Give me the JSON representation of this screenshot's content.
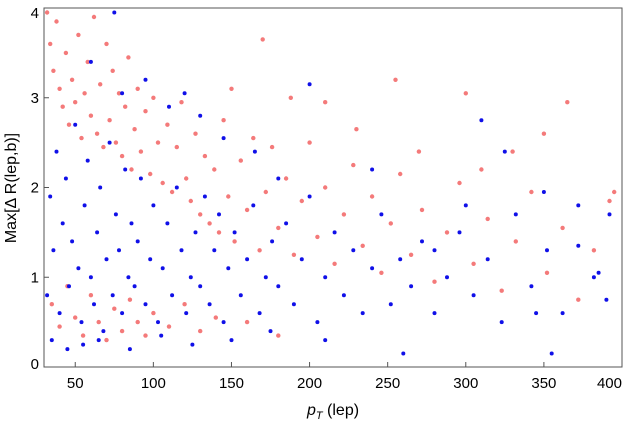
{
  "chart_data": {
    "type": "scatter",
    "title": "",
    "xlabel_main": "p",
    "xlabel_sub": "T",
    "xlabel_rest": " (lep)",
    "ylabel": "Max[Δ R(lep,b)]",
    "xlim": [
      30,
      400
    ],
    "ylim": [
      0,
      4
    ],
    "xticks": [
      50,
      100,
      150,
      200,
      250,
      300,
      350,
      400
    ],
    "yticks": [
      0,
      1,
      2,
      3,
      4
    ],
    "grid": false,
    "legend": "none",
    "series": [
      {
        "color": "#f47a7a",
        "points": [
          [
            32,
            3.95
          ],
          [
            34,
            3.6
          ],
          [
            36,
            3.3
          ],
          [
            38,
            3.85
          ],
          [
            40,
            3.1
          ],
          [
            42,
            2.9
          ],
          [
            44,
            3.5
          ],
          [
            46,
            2.7
          ],
          [
            48,
            3.2
          ],
          [
            50,
            2.95
          ],
          [
            52,
            3.7
          ],
          [
            54,
            2.55
          ],
          [
            56,
            3.05
          ],
          [
            58,
            3.4
          ],
          [
            60,
            2.8
          ],
          [
            62,
            3.9
          ],
          [
            64,
            2.6
          ],
          [
            66,
            3.15
          ],
          [
            68,
            2.45
          ],
          [
            70,
            3.6
          ],
          [
            72,
            2.75
          ],
          [
            74,
            3.3
          ],
          [
            76,
            2.5
          ],
          [
            78,
            3.05
          ],
          [
            80,
            2.35
          ],
          [
            82,
            2.9
          ],
          [
            84,
            3.45
          ],
          [
            86,
            2.2
          ],
          [
            88,
            2.65
          ],
          [
            90,
            3.1
          ],
          [
            92,
            2.4
          ],
          [
            95,
            2.85
          ],
          [
            98,
            2.15
          ],
          [
            100,
            3.0
          ],
          [
            103,
            2.5
          ],
          [
            106,
            2.05
          ],
          [
            109,
            2.7
          ],
          [
            112,
            1.95
          ],
          [
            115,
            2.45
          ],
          [
            118,
            2.95
          ],
          [
            121,
            2.1
          ],
          [
            124,
            1.85
          ],
          [
            127,
            2.6
          ],
          [
            130,
            1.7
          ],
          [
            133,
            2.35
          ],
          [
            136,
            1.6
          ],
          [
            139,
            2.2
          ],
          [
            142,
            1.5
          ],
          [
            145,
            2.75
          ],
          [
            148,
            1.9
          ],
          [
            152,
            1.4
          ],
          [
            156,
            2.3
          ],
          [
            160,
            1.75
          ],
          [
            164,
            2.55
          ],
          [
            168,
            1.3
          ],
          [
            172,
            1.95
          ],
          [
            176,
            2.45
          ],
          [
            180,
            1.55
          ],
          [
            185,
            2.1
          ],
          [
            190,
            1.25
          ],
          [
            195,
            1.85
          ],
          [
            200,
            2.5
          ],
          [
            205,
            1.45
          ],
          [
            210,
            2.0
          ],
          [
            216,
            1.15
          ],
          [
            222,
            1.7
          ],
          [
            228,
            2.25
          ],
          [
            234,
            1.35
          ],
          [
            240,
            1.9
          ],
          [
            246,
            1.05
          ],
          [
            252,
            1.6
          ],
          [
            258,
            2.15
          ],
          [
            265,
            1.25
          ],
          [
            272,
            1.75
          ],
          [
            280,
            0.95
          ],
          [
            288,
            1.5
          ],
          [
            296,
            2.05
          ],
          [
            305,
            1.15
          ],
          [
            314,
            1.65
          ],
          [
            323,
            0.85
          ],
          [
            332,
            1.4
          ],
          [
            342,
            1.95
          ],
          [
            352,
            1.05
          ],
          [
            362,
            1.55
          ],
          [
            372,
            0.75
          ],
          [
            382,
            1.3
          ],
          [
            392,
            1.85
          ],
          [
            150,
            3.1
          ],
          [
            170,
            3.65
          ],
          [
            210,
            2.95
          ],
          [
            255,
            3.2
          ],
          [
            300,
            3.05
          ],
          [
            330,
            2.4
          ],
          [
            365,
            2.95
          ],
          [
            395,
            1.95
          ],
          [
            188,
            3.0
          ],
          [
            230,
            2.65
          ],
          [
            270,
            2.4
          ],
          [
            310,
            2.2
          ],
          [
            350,
            2.6
          ],
          [
            35,
            0.7
          ],
          [
            40,
            0.45
          ],
          [
            45,
            0.9
          ],
          [
            50,
            0.55
          ],
          [
            55,
            0.35
          ],
          [
            60,
            0.8
          ],
          [
            65,
            0.5
          ],
          [
            70,
            0.3
          ],
          [
            75,
            0.65
          ],
          [
            80,
            0.4
          ],
          [
            85,
            0.75
          ],
          [
            90,
            0.5
          ],
          [
            95,
            0.35
          ],
          [
            100,
            0.6
          ],
          [
            110,
            0.45
          ],
          [
            120,
            0.7
          ],
          [
            130,
            0.4
          ],
          [
            140,
            0.55
          ],
          [
            160,
            0.5
          ],
          [
            180,
            0.35
          ]
        ]
      },
      {
        "color": "#1010e8",
        "points": [
          [
            32,
            0.8
          ],
          [
            34,
            1.9
          ],
          [
            36,
            1.3
          ],
          [
            38,
            2.4
          ],
          [
            40,
            0.6
          ],
          [
            42,
            1.6
          ],
          [
            44,
            2.1
          ],
          [
            46,
            0.9
          ],
          [
            48,
            1.4
          ],
          [
            50,
            2.7
          ],
          [
            52,
            1.1
          ],
          [
            54,
            0.5
          ],
          [
            56,
            1.8
          ],
          [
            58,
            2.3
          ],
          [
            60,
            1.0
          ],
          [
            62,
            0.7
          ],
          [
            64,
            1.5
          ],
          [
            66,
            2.0
          ],
          [
            68,
            0.4
          ],
          [
            70,
            1.2
          ],
          [
            72,
            2.5
          ],
          [
            74,
            0.8
          ],
          [
            76,
            1.7
          ],
          [
            78,
            1.3
          ],
          [
            80,
            0.6
          ],
          [
            82,
            2.2
          ],
          [
            84,
            1.0
          ],
          [
            86,
            1.6
          ],
          [
            88,
            0.9
          ],
          [
            90,
            1.4
          ],
          [
            92,
            2.1
          ],
          [
            95,
            0.7
          ],
          [
            98,
            1.2
          ],
          [
            100,
            1.8
          ],
          [
            103,
            0.5
          ],
          [
            106,
            1.1
          ],
          [
            109,
            1.6
          ],
          [
            112,
            0.8
          ],
          [
            115,
            2.0
          ],
          [
            118,
            1.3
          ],
          [
            121,
            0.6
          ],
          [
            124,
            1.0
          ],
          [
            127,
            1.5
          ],
          [
            130,
            0.9
          ],
          [
            133,
            1.9
          ],
          [
            136,
            0.7
          ],
          [
            139,
            1.3
          ],
          [
            142,
            1.7
          ],
          [
            145,
            0.5
          ],
          [
            148,
            1.1
          ],
          [
            152,
            1.5
          ],
          [
            156,
            0.8
          ],
          [
            160,
            1.2
          ],
          [
            164,
            1.8
          ],
          [
            168,
            0.6
          ],
          [
            172,
            1.0
          ],
          [
            176,
            1.4
          ],
          [
            180,
            0.9
          ],
          [
            185,
            1.6
          ],
          [
            190,
            0.7
          ],
          [
            195,
            1.2
          ],
          [
            200,
            1.9
          ],
          [
            205,
            0.5
          ],
          [
            210,
            1.0
          ],
          [
            216,
            1.5
          ],
          [
            222,
            0.8
          ],
          [
            228,
            1.3
          ],
          [
            234,
            0.6
          ],
          [
            240,
            1.1
          ],
          [
            246,
            1.7
          ],
          [
            252,
            0.7
          ],
          [
            258,
            1.2
          ],
          [
            265,
            0.9
          ],
          [
            272,
            1.4
          ],
          [
            280,
            0.6
          ],
          [
            288,
            1.0
          ],
          [
            296,
            1.5
          ],
          [
            305,
            0.8
          ],
          [
            314,
            1.2
          ],
          [
            323,
            0.5
          ],
          [
            332,
            1.7
          ],
          [
            342,
            0.9
          ],
          [
            352,
            1.3
          ],
          [
            362,
            0.6
          ],
          [
            372,
            1.8
          ],
          [
            382,
            1.0
          ],
          [
            392,
            1.7
          ],
          [
            200,
            3.15
          ],
          [
            310,
            2.75
          ],
          [
            345,
            0.6
          ],
          [
            355,
            0.15
          ],
          [
            385,
            1.05
          ],
          [
            390,
            0.75
          ],
          [
            350,
            1.95
          ],
          [
            372,
            1.35
          ],
          [
            325,
            2.4
          ],
          [
            280,
            1.3
          ],
          [
            260,
            0.15
          ],
          [
            300,
            1.8
          ],
          [
            240,
            2.2
          ],
          [
            60,
            3.4
          ],
          [
            75,
            3.95
          ],
          [
            80,
            3.05
          ],
          [
            95,
            3.2
          ],
          [
            110,
            2.9
          ],
          [
            130,
            2.8
          ],
          [
            145,
            2.55
          ],
          [
            165,
            2.4
          ],
          [
            180,
            2.1
          ],
          [
            120,
            3.05
          ],
          [
            35,
            0.3
          ],
          [
            45,
            0.2
          ],
          [
            55,
            0.25
          ],
          [
            65,
            0.3
          ],
          [
            85,
            0.2
          ],
          [
            105,
            0.35
          ],
          [
            125,
            0.25
          ],
          [
            150,
            0.3
          ],
          [
            175,
            0.4
          ],
          [
            210,
            0.3
          ]
        ]
      }
    ]
  }
}
